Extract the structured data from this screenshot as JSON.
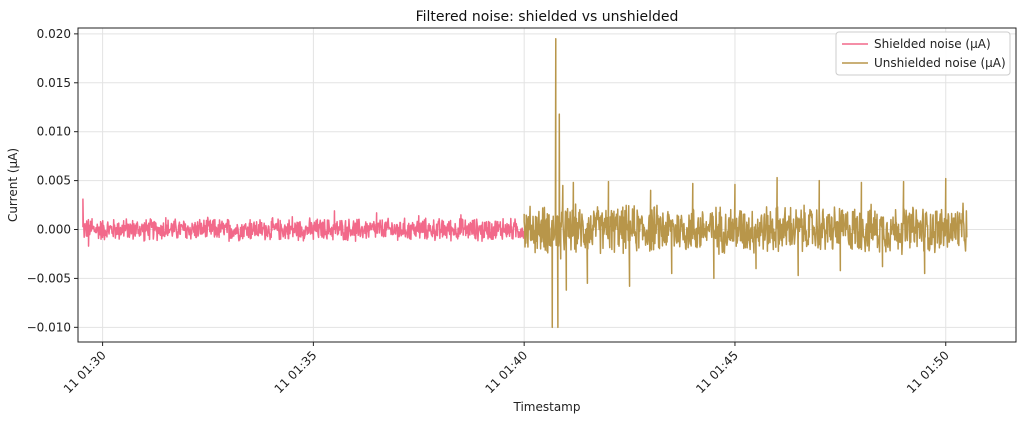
{
  "chart_data": {
    "type": "line",
    "title": "Filtered noise: shielded vs unshielded",
    "xlabel": "Timestamp",
    "ylabel": "Current (μA)",
    "xlim": [
      "11 01:29:25",
      "11 01:51:40"
    ],
    "ylim": [
      -0.0115,
      0.0206
    ],
    "yticks": [
      -0.01,
      -0.005,
      0.0,
      0.005,
      0.01,
      0.015,
      0.02
    ],
    "ytick_labels": [
      "−0.010",
      "−0.005",
      "0.000",
      "0.005",
      "0.010",
      "0.015",
      "0.020"
    ],
    "xticks": [
      "11 01:30:00",
      "11 01:35:00",
      "11 01:40:00",
      "11 01:45:00",
      "11 01:50:00"
    ],
    "xtick_labels": [
      "11 01:30",
      "11 01:35",
      "11 01:40",
      "11 01:45",
      "11 01:50"
    ],
    "grid": true,
    "legend_position": "top-right",
    "series": [
      {
        "name": "Shielded noise (μA)",
        "color": "#f2698a",
        "time_range": [
          "11 01:29:32",
          "11 01:40:00"
        ],
        "x": [
          "11 01:29:32",
          "11 01:29:35",
          "11 01:29:40",
          "11 01:29:45",
          "11 01:30:00",
          "11 01:30:30",
          "11 01:31:00",
          "11 01:31:30",
          "11 01:32:00",
          "11 01:32:30",
          "11 01:33:00",
          "11 01:33:30",
          "11 01:34:00",
          "11 01:34:30",
          "11 01:35:00",
          "11 01:35:30",
          "11 01:36:00",
          "11 01:36:30",
          "11 01:37:00",
          "11 01:37:30",
          "11 01:38:00",
          "11 01:38:30",
          "11 01:39:00",
          "11 01:39:30",
          "11 01:40:00"
        ],
        "y": [
          0.0031,
          0.0006,
          -0.0017,
          0.0011,
          -0.0008,
          0.0009,
          -0.0011,
          0.0012,
          -0.0009,
          0.0011,
          -0.0012,
          0.001,
          -0.0008,
          0.0013,
          -0.001,
          0.0019,
          -0.0012,
          0.0017,
          -0.0011,
          0.0014,
          -0.0009,
          0.0015,
          -0.0012,
          0.0011,
          -0.0003
        ],
        "noise_amplitude": 0.0013
      },
      {
        "name": "Unshielded noise (μA)",
        "color": "#b8964a",
        "time_range": [
          "11 01:40:00",
          "11 01:50:30"
        ],
        "x": [
          "11 01:40:00",
          "11 01:40:30",
          "11 01:40:40",
          "11 01:40:45",
          "11 01:40:48",
          "11 01:40:50",
          "11 01:40:52",
          "11 01:40:55",
          "11 01:41:00",
          "11 01:41:10",
          "11 01:41:30",
          "11 01:42:00",
          "11 01:42:30",
          "11 01:43:00",
          "11 01:43:30",
          "11 01:44:00",
          "11 01:44:30",
          "11 01:45:00",
          "11 01:45:30",
          "11 01:46:00",
          "11 01:46:30",
          "11 01:47:00",
          "11 01:47:30",
          "11 01:48:00",
          "11 01:48:30",
          "11 01:49:00",
          "11 01:49:30",
          "11 01:50:00",
          "11 01:50:30"
        ],
        "y": [
          0.0008,
          -0.001,
          -0.01,
          0.0195,
          -0.01,
          0.0118,
          -0.003,
          0.0045,
          -0.0062,
          0.0048,
          -0.0055,
          0.0049,
          -0.0058,
          0.004,
          -0.0045,
          0.0047,
          -0.005,
          0.0046,
          -0.004,
          0.0053,
          -0.0047,
          0.005,
          -0.0042,
          0.0048,
          -0.0038,
          0.0049,
          -0.0045,
          0.0052,
          -0.0008
        ],
        "noise_amplitude": 0.0028
      }
    ]
  }
}
